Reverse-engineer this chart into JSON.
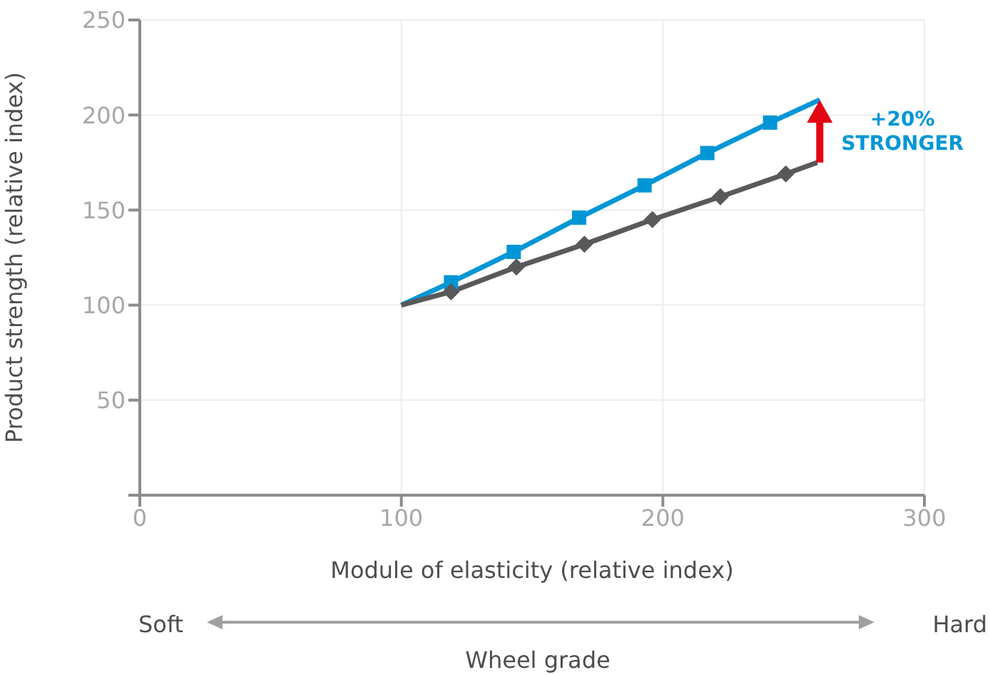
{
  "chart_data": {
    "type": "line",
    "xlabel": "Module of elasticity (relative index)",
    "ylabel": "Product strength (relative index)",
    "xlim": [
      0,
      300
    ],
    "xticks": [
      0,
      100,
      200,
      300
    ],
    "ylim": [
      0,
      250
    ],
    "yticks": [
      {
        "value": 0,
        "label": null
      },
      50,
      100,
      150,
      200,
      250
    ],
    "grid": true,
    "line_style": "solid",
    "series": [
      {
        "color": "#0096d6",
        "marker": "square",
        "x": [
          100,
          119,
          143,
          168,
          193,
          217,
          241,
          260
        ],
        "values": [
          100,
          112,
          128,
          146,
          163,
          180,
          196,
          208
        ]
      },
      {
        "color": "#58595b",
        "marker": "diamond",
        "x": [
          100,
          119,
          144,
          170,
          196,
          222,
          247,
          259
        ],
        "values": [
          100,
          107,
          120,
          132,
          145,
          157,
          169,
          175
        ]
      }
    ],
    "annotations": [
      {
        "text": "+20% STRONGER",
        "x": 260,
        "y": 208
      },
      "Soft",
      "Hard",
      "Wheel grade"
    ]
  }
}
